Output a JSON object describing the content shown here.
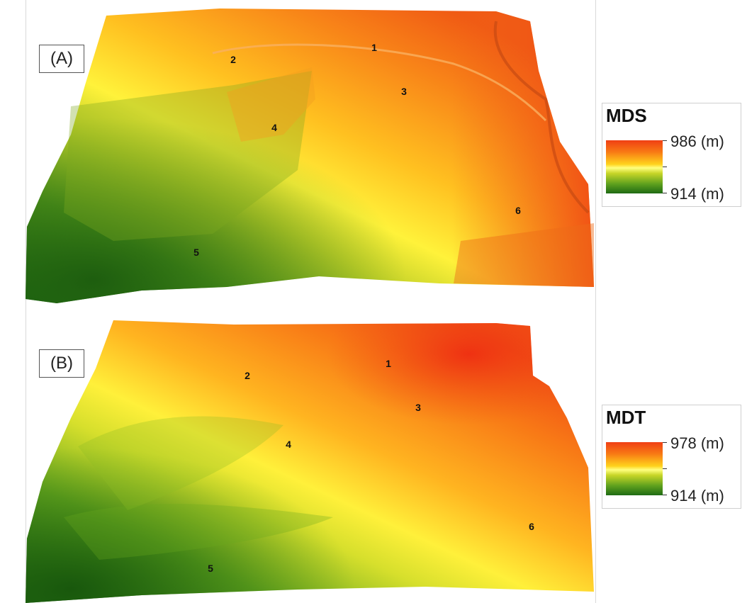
{
  "panels": [
    {
      "label": "(A)",
      "legend": {
        "title": "MDS",
        "max": "986 (m)",
        "min": "914 (m)"
      },
      "markers": [
        "1",
        "2",
        "3",
        "4",
        "5",
        "6"
      ]
    },
    {
      "label": "(B)",
      "legend": {
        "title": "MDT",
        "max": "978 (m)",
        "min": "914 (m)"
      },
      "markers": [
        "1",
        "2",
        "3",
        "4",
        "5",
        "6"
      ]
    }
  ],
  "colors": {
    "ramp_high": "#f03f14",
    "ramp_mid": "#ffff80",
    "ramp_low": "#1f6b14"
  }
}
